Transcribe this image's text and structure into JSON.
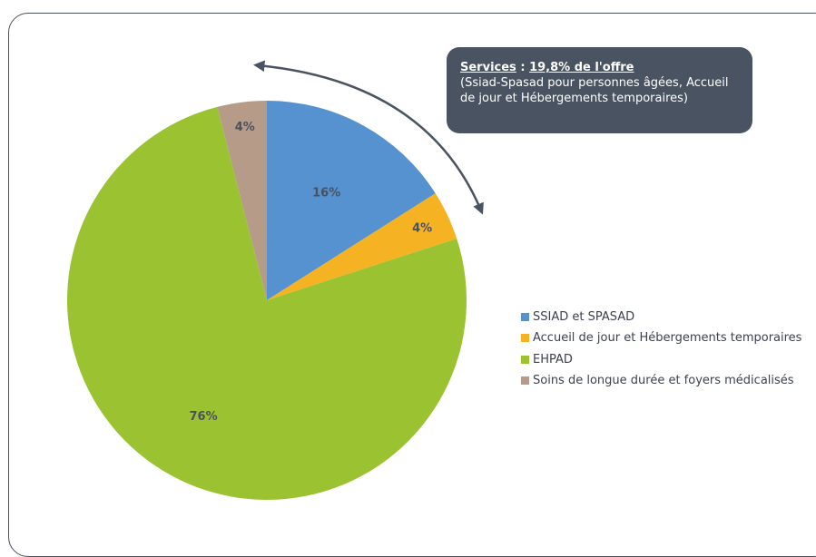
{
  "chart_data": {
    "type": "pie",
    "title": "",
    "series": [
      {
        "name": "SSIAD et SPASAD",
        "value": 16,
        "label": "16%",
        "color": "#5592cf"
      },
      {
        "name": "Accueil de jour et Hébergements temporaires",
        "value": 4,
        "label": "4%",
        "color": "#f5b324"
      },
      {
        "name": "EHPAD",
        "value": 76,
        "label": "76%",
        "color": "#9bc230"
      },
      {
        "name": "Soins de longue durée et foyers médicalisés",
        "value": 4,
        "label": "4%",
        "color": "#b69c88"
      }
    ],
    "legend_position": "right",
    "annotation": {
      "title": "Services",
      "separator": " : ",
      "value": "19,8% de l'offre",
      "line2": "(Ssiad-Spasad pour personnes âgées, Accueil",
      "line3": "de jour et Hébergements temporaires)"
    }
  },
  "colors": {
    "callout_background": "#4a5361",
    "arrow": "#4a5361",
    "frame_border": "#4a4f5c"
  }
}
